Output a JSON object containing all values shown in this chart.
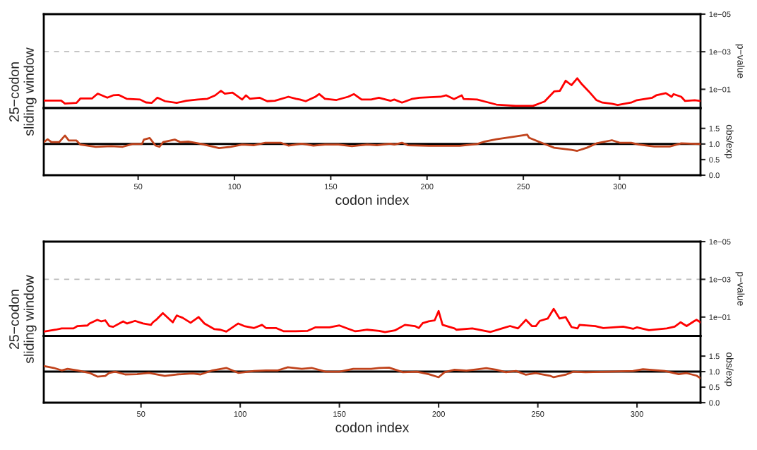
{
  "chart_data": [
    {
      "type": "line",
      "ylabel": "p−value",
      "annotations": [
        "25−codon\nsliding window"
      ],
      "log": "y",
      "xlim": [
        1,
        342
      ],
      "ylim": [
        1,
        1e-05
      ],
      "yticks": [
        {
          "value": 1e-05,
          "label": "1e−05"
        },
        {
          "value": 0.001,
          "label": "1e−03"
        },
        {
          "value": 0.1,
          "label": "1e−01"
        }
      ],
      "tick_labels": "y",
      "grid": false,
      "legend": false,
      "ref_lines": [
        {
          "axis": "y",
          "value": 0.001,
          "color": "#bbbbbb",
          "line_style": "dashed"
        }
      ],
      "series": [
        {
          "color": "#ff0000",
          "x": [
            1,
            10,
            12,
            18,
            20,
            26,
            29,
            34,
            37,
            40,
            44,
            51,
            54,
            57,
            60,
            64,
            70,
            75,
            81,
            86,
            90,
            93,
            95,
            99,
            104,
            106,
            108,
            113,
            117,
            121,
            128,
            132,
            134,
            137,
            142,
            144,
            147,
            153,
            159,
            162,
            166,
            171,
            175,
            181,
            183,
            187,
            192,
            196,
            207,
            210,
            214,
            218,
            219,
            226,
            230,
            236,
            246,
            255,
            261,
            266,
            269,
            272,
            275,
            278,
            280,
            284,
            288,
            291,
            296,
            299,
            306,
            309,
            317,
            319,
            324,
            327,
            328,
            332,
            334,
            339,
            342
          ],
          "values": [
            0.4,
            0.4,
            0.58,
            0.53,
            0.31,
            0.31,
            0.17,
            0.28,
            0.21,
            0.2,
            0.32,
            0.35,
            0.5,
            0.53,
            0.28,
            0.43,
            0.53,
            0.41,
            0.35,
            0.32,
            0.21,
            0.12,
            0.17,
            0.15,
            0.35,
            0.21,
            0.32,
            0.28,
            0.43,
            0.41,
            0.25,
            0.32,
            0.35,
            0.43,
            0.25,
            0.18,
            0.32,
            0.37,
            0.25,
            0.18,
            0.35,
            0.35,
            0.28,
            0.41,
            0.35,
            0.51,
            0.33,
            0.28,
            0.25,
            0.21,
            0.33,
            0.21,
            0.33,
            0.35,
            0.45,
            0.65,
            0.76,
            0.76,
            0.45,
            0.13,
            0.12,
            0.035,
            0.06,
            0.026,
            0.048,
            0.13,
            0.38,
            0.51,
            0.59,
            0.69,
            0.51,
            0.38,
            0.28,
            0.21,
            0.16,
            0.25,
            0.18,
            0.25,
            0.42,
            0.38,
            0.42
          ]
        }
      ]
    },
    {
      "type": "line",
      "ylabel": "obs/exp",
      "xlabel": "codon index",
      "xlim": [
        1,
        342
      ],
      "ylim": [
        0,
        2.15
      ],
      "xticks": [
        50,
        100,
        150,
        200,
        250,
        300
      ],
      "yticks": [
        {
          "value": 0,
          "label": "0.0"
        },
        {
          "value": 0.5,
          "label": "0.5"
        },
        {
          "value": 1,
          "label": "1.0"
        },
        {
          "value": 1.5,
          "label": "1.5"
        }
      ],
      "grid": false,
      "legend": false,
      "ref_lines": [
        {
          "axis": "y",
          "value": 1,
          "color": "#000000",
          "line_style": "solid"
        }
      ],
      "series": [
        {
          "color": "#c0431c",
          "x": [
            1,
            3,
            5,
            9,
            12,
            14,
            18,
            20,
            28,
            36,
            42,
            47,
            52,
            53,
            56,
            59,
            61,
            63,
            69,
            72,
            76,
            83,
            92,
            98,
            104,
            110,
            116,
            124,
            128,
            135,
            141,
            147,
            154,
            161,
            169,
            174,
            181,
            183,
            187,
            190,
            201,
            217,
            226,
            230,
            236,
            246,
            252,
            253,
            261,
            266,
            275,
            278,
            283,
            288,
            296,
            300,
            306,
            310,
            318,
            326,
            332,
            342
          ],
          "values": [
            1.06,
            1.15,
            1.06,
            1.06,
            1.27,
            1.11,
            1.11,
            0.98,
            0.91,
            0.93,
            0.91,
            1.0,
            1.0,
            1.14,
            1.19,
            0.95,
            0.91,
            1.06,
            1.14,
            1.06,
            1.08,
            1.0,
            0.87,
            0.91,
            0.98,
            0.96,
            1.04,
            1.04,
            0.95,
            1.01,
            0.95,
            0.98,
            0.98,
            0.93,
            0.98,
            0.96,
            1.01,
            0.98,
            1.04,
            0.96,
            0.94,
            0.94,
            1.0,
            1.08,
            1.15,
            1.24,
            1.3,
            1.2,
            1.0,
            0.88,
            0.81,
            0.78,
            0.88,
            1.02,
            1.12,
            1.04,
            1.04,
            0.98,
            0.92,
            0.92,
            1.02,
            1.0
          ]
        }
      ]
    },
    {
      "type": "line",
      "ylabel": "p−value",
      "annotations": [
        "25−codon\nsliding window"
      ],
      "log": "y",
      "xlim": [
        1,
        332
      ],
      "ylim": [
        1,
        1e-05
      ],
      "yticks": [
        {
          "value": 1e-05,
          "label": "1e−05"
        },
        {
          "value": 0.001,
          "label": "1e−03"
        },
        {
          "value": 0.1,
          "label": "1e−01"
        }
      ],
      "tick_labels": "y",
      "grid": false,
      "legend": false,
      "ref_lines": [
        {
          "axis": "y",
          "value": 0.001,
          "color": "#bbbbbb",
          "line_style": "dashed"
        }
      ],
      "series": [
        {
          "color": "#ff0000",
          "x": [
            1,
            7,
            10,
            16,
            18,
            23,
            24,
            28,
            30,
            32,
            34,
            36,
            41,
            43,
            47,
            51,
            55,
            56,
            58,
            61,
            66,
            68,
            71,
            75,
            79,
            82,
            87,
            90,
            93,
            99,
            102,
            107,
            111,
            113,
            118,
            122,
            128,
            134,
            138,
            145,
            150,
            155,
            158,
            164,
            170,
            173,
            178,
            183,
            188,
            190,
            192,
            195,
            198,
            200,
            202,
            208,
            209,
            217,
            226,
            232,
            236,
            240,
            244,
            247,
            249,
            251,
            255,
            258,
            261,
            264,
            267,
            270,
            271,
            279,
            283,
            293,
            298,
            300,
            306,
            315,
            319,
            322,
            325,
            329,
            330,
            332
          ],
          "values": [
            0.59,
            0.47,
            0.4,
            0.4,
            0.3,
            0.28,
            0.22,
            0.14,
            0.17,
            0.15,
            0.3,
            0.33,
            0.17,
            0.22,
            0.16,
            0.22,
            0.26,
            0.19,
            0.13,
            0.062,
            0.19,
            0.083,
            0.11,
            0.2,
            0.1,
            0.22,
            0.44,
            0.47,
            0.59,
            0.22,
            0.3,
            0.38,
            0.26,
            0.38,
            0.38,
            0.57,
            0.57,
            0.54,
            0.35,
            0.35,
            0.28,
            0.44,
            0.57,
            0.47,
            0.54,
            0.63,
            0.51,
            0.26,
            0.3,
            0.38,
            0.21,
            0.17,
            0.15,
            0.048,
            0.26,
            0.4,
            0.47,
            0.4,
            0.62,
            0.4,
            0.3,
            0.4,
            0.14,
            0.3,
            0.3,
            0.16,
            0.12,
            0.037,
            0.12,
            0.1,
            0.34,
            0.4,
            0.26,
            0.3,
            0.38,
            0.32,
            0.42,
            0.35,
            0.5,
            0.4,
            0.32,
            0.19,
            0.3,
            0.16,
            0.14,
            0.19
          ]
        }
      ]
    },
    {
      "type": "line",
      "ylabel": "obs/exp",
      "xlabel": "codon index",
      "xlim": [
        1,
        332
      ],
      "ylim": [
        0,
        2.15
      ],
      "xticks": [
        50,
        100,
        150,
        200,
        250,
        300
      ],
      "yticks": [
        {
          "value": 0,
          "label": "0.0"
        },
        {
          "value": 0.5,
          "label": "0.5"
        },
        {
          "value": 1,
          "label": "1.0"
        },
        {
          "value": 1.5,
          "label": "1.5"
        }
      ],
      "grid": false,
      "legend": false,
      "ref_lines": [
        {
          "axis": "y",
          "value": 1,
          "color": "#000000",
          "line_style": "solid"
        }
      ],
      "series": [
        {
          "color": "#c0431c",
          "x": [
            1,
            6,
            10,
            13,
            18,
            24,
            28,
            32,
            34,
            37,
            42,
            48,
            54,
            62,
            68,
            76,
            80,
            86,
            93,
            99,
            107,
            113,
            119,
            124,
            131,
            136,
            143,
            150,
            157,
            166,
            170,
            175,
            182,
            189,
            195,
            200,
            203,
            208,
            214,
            220,
            224,
            229,
            234,
            239,
            244,
            249,
            256,
            258,
            264,
            268,
            274,
            286,
            298,
            303,
            314,
            321,
            325,
            330,
            332
          ],
          "values": [
            1.18,
            1.12,
            1.04,
            1.09,
            1.04,
            0.96,
            0.84,
            0.86,
            0.96,
            1.0,
            0.91,
            0.92,
            0.96,
            0.86,
            0.91,
            0.94,
            0.91,
            1.04,
            1.12,
            0.96,
            1.02,
            1.04,
            1.04,
            1.14,
            1.09,
            1.12,
            1.0,
            1.0,
            1.09,
            1.09,
            1.12,
            1.13,
            0.98,
            1.0,
            0.92,
            0.82,
            0.98,
            1.06,
            1.03,
            1.08,
            1.11,
            1.06,
            0.98,
            1.02,
            0.9,
            0.95,
            0.87,
            0.82,
            0.9,
            1.0,
            0.98,
            1.0,
            1.02,
            1.08,
            1.02,
            0.92,
            0.95,
            0.87,
            0.79
          ]
        }
      ]
    }
  ]
}
